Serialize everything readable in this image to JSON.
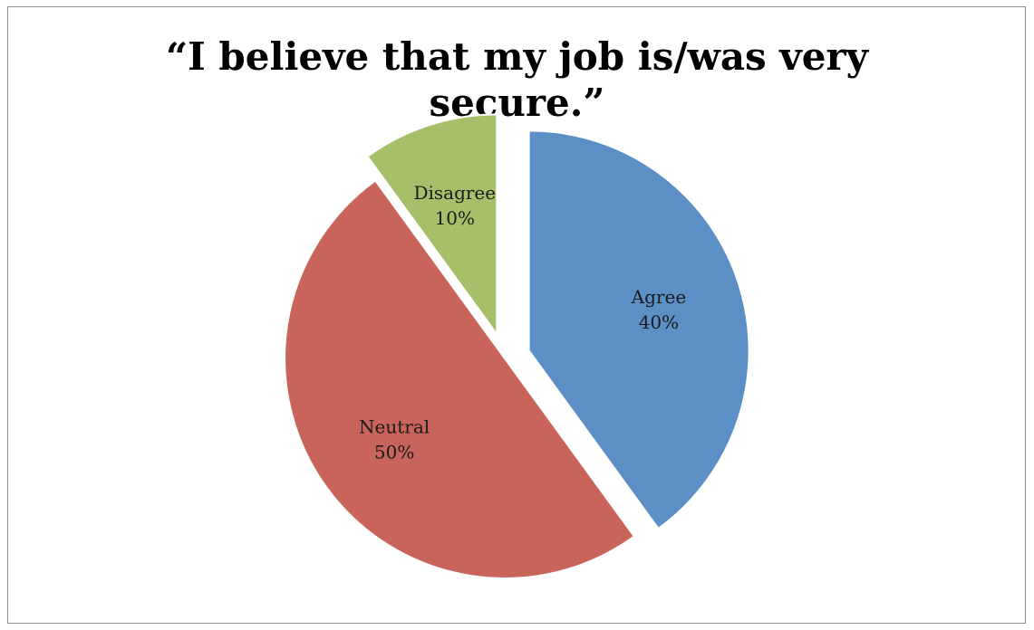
{
  "chart_data": {
    "type": "pie",
    "title_lines": [
      "“I believe that my job is/was very",
      "secure.”"
    ],
    "slices": [
      {
        "label": "Agree",
        "value": 40,
        "percent_label": "40%",
        "color": "#5b8fc5",
        "exploded": true
      },
      {
        "label": "Neutral",
        "value": 50,
        "percent_label": "50%",
        "color": "#c9645a",
        "exploded": false
      },
      {
        "label": "Disagree",
        "value": 10,
        "percent_label": "10%",
        "color": "#a6c06a",
        "exploded": true
      }
    ],
    "start_angle_deg": 0,
    "direction": "clockwise",
    "slice_border_color": "#ffffff",
    "legend": "none"
  }
}
